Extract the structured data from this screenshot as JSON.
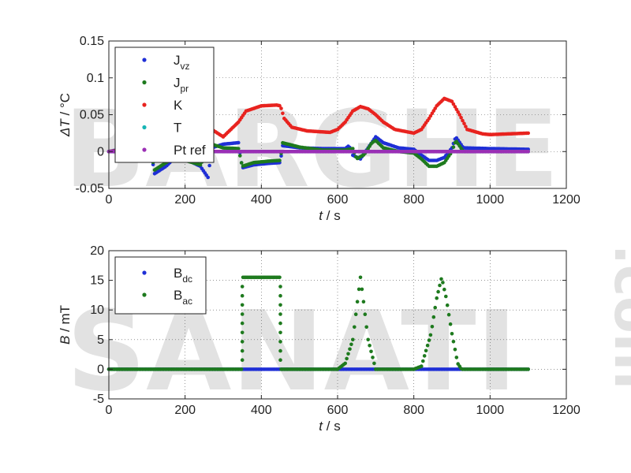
{
  "watermark": {
    "line1": "BARGHE",
    "line2": "SANATI",
    "suffix": ".com",
    "color1": "#3f56c9",
    "color2": "#f59a33"
  },
  "chart_data": [
    {
      "type": "scatter",
      "title": "",
      "xlabel": {
        "var": "t",
        "unit": " / s"
      },
      "ylabel": {
        "var": "ΔT",
        "unit": " / °C"
      },
      "xlim": [
        0,
        1200
      ],
      "ylim": [
        -0.05,
        0.15
      ],
      "xticks": [
        0,
        200,
        400,
        600,
        800,
        1000,
        1200
      ],
      "yticks": [
        -0.05,
        0,
        0.05,
        0.1,
        0.15
      ],
      "xtick_labels": [
        "0",
        "200",
        "400",
        "600",
        "800",
        "1000",
        "1200"
      ],
      "ytick_labels": [
        "-0.05",
        "0",
        "0.05",
        "0.1",
        "0.15"
      ],
      "grid": true,
      "legend": {
        "position": "top-left"
      },
      "series": [
        {
          "key": "jvz",
          "name": "J",
          "sub": "vz",
          "color": "#1f2fd6",
          "points": [
            [
              0,
              0
            ],
            [
              20,
              0.002
            ],
            [
              60,
              0.003
            ],
            [
              110,
              0.001
            ],
            [
              120,
              -0.03
            ],
            [
              150,
              -0.02
            ],
            [
              180,
              -0.005
            ],
            [
              200,
              -0.01
            ],
            [
              240,
              -0.02
            ],
            [
              260,
              -0.035
            ],
            [
              270,
              0.005
            ],
            [
              300,
              0.01
            ],
            [
              340,
              0.012
            ],
            [
              350,
              -0.022
            ],
            [
              380,
              -0.018
            ],
            [
              420,
              -0.016
            ],
            [
              450,
              -0.015
            ],
            [
              455,
              0.008
            ],
            [
              500,
              0.005
            ],
            [
              560,
              0.004
            ],
            [
              620,
              0.004
            ],
            [
              630,
              0.008
            ],
            [
              640,
              -0.005
            ],
            [
              660,
              -0.01
            ],
            [
              680,
              0.005
            ],
            [
              700,
              0.02
            ],
            [
              720,
              0.012
            ],
            [
              760,
              0.005
            ],
            [
              800,
              0.003
            ],
            [
              820,
              -0.005
            ],
            [
              840,
              -0.012
            ],
            [
              860,
              -0.012
            ],
            [
              880,
              -0.008
            ],
            [
              900,
              0.005
            ],
            [
              910,
              0.02
            ],
            [
              930,
              0.005
            ],
            [
              1000,
              0.004
            ],
            [
              1100,
              0.003
            ]
          ]
        },
        {
          "key": "jpr",
          "name": "J",
          "sub": "pr",
          "color": "#1e7a1e",
          "points": [
            [
              0,
              0
            ],
            [
              20,
              0.001
            ],
            [
              60,
              0.002
            ],
            [
              110,
              0.001
            ],
            [
              120,
              -0.025
            ],
            [
              150,
              -0.015
            ],
            [
              180,
              -0.005
            ],
            [
              200,
              -0.012
            ],
            [
              240,
              -0.018
            ],
            [
              270,
              0.01
            ],
            [
              300,
              0.005
            ],
            [
              340,
              0.004
            ],
            [
              350,
              -0.02
            ],
            [
              380,
              -0.015
            ],
            [
              420,
              -0.013
            ],
            [
              450,
              -0.012
            ],
            [
              455,
              0.012
            ],
            [
              500,
              0.006
            ],
            [
              560,
              0.002
            ],
            [
              620,
              0.002
            ],
            [
              640,
              0.004
            ],
            [
              650,
              -0.01
            ],
            [
              670,
              -0.004
            ],
            [
              690,
              0.012
            ],
            [
              700,
              0.015
            ],
            [
              720,
              0.005
            ],
            [
              760,
              0.0
            ],
            [
              800,
              -0.002
            ],
            [
              820,
              -0.01
            ],
            [
              840,
              -0.02
            ],
            [
              860,
              -0.02
            ],
            [
              880,
              -0.015
            ],
            [
              900,
              0.0
            ],
            [
              910,
              0.015
            ],
            [
              930,
              0.0
            ],
            [
              1000,
              0.0
            ],
            [
              1100,
              0.0
            ]
          ]
        },
        {
          "key": "k",
          "name": "K",
          "sub": "",
          "color": "#e8231f",
          "points": [
            [
              0,
              0
            ],
            [
              100,
              0.005
            ],
            [
              200,
              0.03
            ],
            [
              240,
              0.035
            ],
            [
              270,
              0.03
            ],
            [
              300,
              0.02
            ],
            [
              340,
              0.04
            ],
            [
              360,
              0.055
            ],
            [
              400,
              0.062
            ],
            [
              440,
              0.063
            ],
            [
              450,
              0.062
            ],
            [
              460,
              0.045
            ],
            [
              480,
              0.033
            ],
            [
              520,
              0.028
            ],
            [
              580,
              0.026
            ],
            [
              600,
              0.03
            ],
            [
              620,
              0.04
            ],
            [
              640,
              0.055
            ],
            [
              660,
              0.061
            ],
            [
              680,
              0.058
            ],
            [
              700,
              0.05
            ],
            [
              720,
              0.04
            ],
            [
              750,
              0.03
            ],
            [
              800,
              0.025
            ],
            [
              820,
              0.03
            ],
            [
              840,
              0.045
            ],
            [
              860,
              0.062
            ],
            [
              880,
              0.072
            ],
            [
              900,
              0.068
            ],
            [
              920,
              0.05
            ],
            [
              940,
              0.03
            ],
            [
              980,
              0.024
            ],
            [
              1000,
              0.023
            ],
            [
              1100,
              0.025
            ]
          ]
        },
        {
          "key": "t",
          "name": "T",
          "sub": "",
          "color": "#17b5b5",
          "points": [
            [
              0,
              0
            ],
            [
              200,
              0.0
            ],
            [
              400,
              0.0
            ],
            [
              600,
              0.0
            ],
            [
              800,
              0.0
            ],
            [
              1000,
              0.0
            ],
            [
              1100,
              0.0
            ]
          ]
        },
        {
          "key": "ptref",
          "name": "Pt ref",
          "sub": "",
          "color": "#9b2fb5",
          "points": [
            [
              0,
              0
            ],
            [
              100,
              0.0005
            ],
            [
              200,
              0.0005
            ],
            [
              300,
              0.0
            ],
            [
              400,
              0.0
            ],
            [
              500,
              0.0
            ],
            [
              600,
              0.0
            ],
            [
              700,
              0.0
            ],
            [
              800,
              0.0
            ],
            [
              900,
              0.0
            ],
            [
              1000,
              0.0
            ],
            [
              1100,
              0.0
            ]
          ]
        }
      ]
    },
    {
      "type": "scatter",
      "title": "",
      "xlabel": {
        "var": "t",
        "unit": " / s"
      },
      "ylabel": {
        "var": "B",
        "unit": " / mT"
      },
      "xlim": [
        0,
        1200
      ],
      "ylim": [
        -5,
        20
      ],
      "xticks": [
        0,
        200,
        400,
        600,
        800,
        1000,
        1200
      ],
      "yticks": [
        -5,
        0,
        5,
        10,
        15,
        20
      ],
      "xtick_labels": [
        "0",
        "200",
        "400",
        "600",
        "800",
        "1000",
        "1200"
      ],
      "ytick_labels": [
        "-5",
        "0",
        "5",
        "10",
        "15",
        "20"
      ],
      "grid": true,
      "legend": {
        "position": "top-left"
      },
      "series": [
        {
          "key": "bdc",
          "name": "B",
          "sub": "dc",
          "color": "#1f2fd6",
          "points": [
            [
              0,
              0
            ],
            [
              1100,
              0
            ]
          ]
        },
        {
          "key": "bac",
          "name": "B",
          "sub": "ac",
          "color": "#1e7a1e",
          "points": [
            [
              0,
              0
            ],
            [
              300,
              0
            ],
            [
              350,
              0
            ],
            [
              350,
              15.5
            ],
            [
              450,
              15.5
            ],
            [
              450,
              0
            ],
            [
              600,
              0
            ],
            [
              620,
              1
            ],
            [
              640,
              5
            ],
            [
              655,
              13
            ],
            [
              660,
              15.5
            ],
            [
              665,
              13
            ],
            [
              680,
              5
            ],
            [
              700,
              0
            ],
            [
              800,
              0
            ],
            [
              820,
              0.5
            ],
            [
              845,
              6
            ],
            [
              860,
              12
            ],
            [
              873,
              15.5
            ],
            [
              885,
              12
            ],
            [
              900,
              6
            ],
            [
              915,
              1
            ],
            [
              925,
              0
            ],
            [
              1100,
              0
            ]
          ]
        }
      ]
    }
  ]
}
